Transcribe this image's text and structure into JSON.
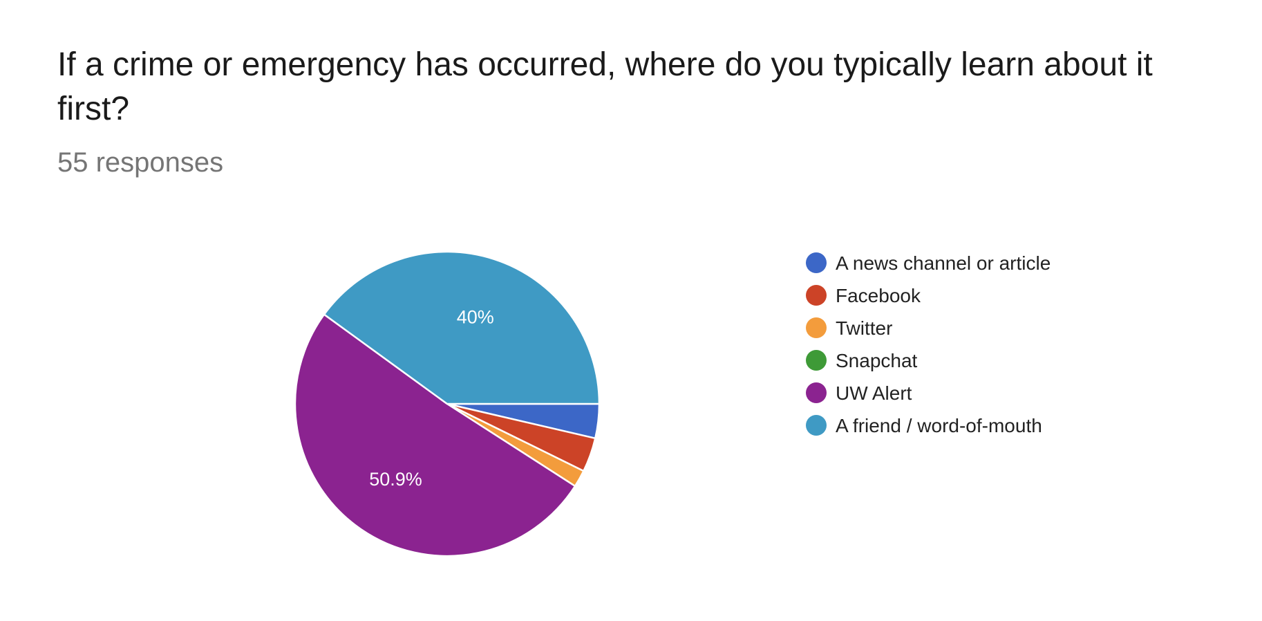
{
  "header": {
    "title": "If a crime or emergency has occurred, where do you typically learn about it first?",
    "responses": "55 responses"
  },
  "chart_data": {
    "type": "pie",
    "categories": [
      "A news channel or article",
      "Facebook",
      "Twitter",
      "Snapchat",
      "UW Alert",
      "A friend / word-of-mouth"
    ],
    "values": [
      2,
      2,
      1,
      0,
      28,
      22
    ],
    "percent_labels": [
      "",
      "",
      "",
      "",
      "50.9%",
      "40%"
    ],
    "colors": [
      "#3c67c7",
      "#cc4327",
      "#f39c3c",
      "#3e9a37",
      "#8b2390",
      "#3f9ac4"
    ],
    "legend": "right"
  }
}
